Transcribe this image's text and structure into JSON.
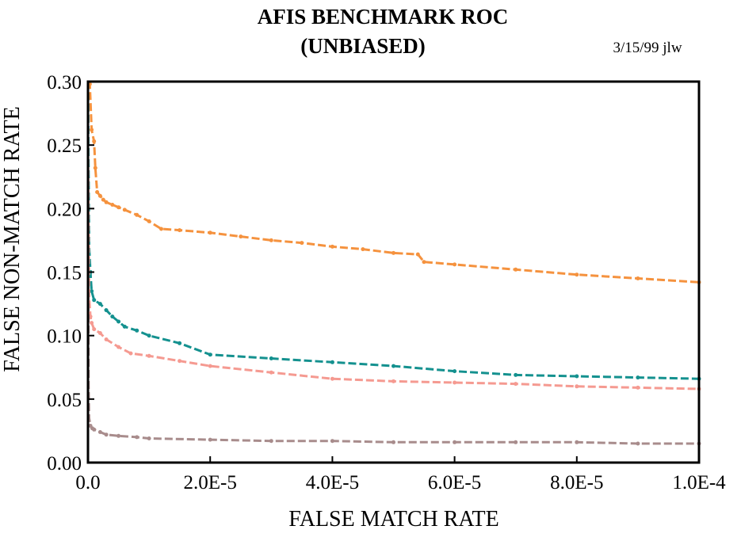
{
  "chart_data": {
    "type": "line",
    "title": "AFIS BENCHMARK ROC",
    "subtitle": "(UNBIASED)",
    "annotation": "3/15/99 jlw",
    "xlabel": "FALSE MATCH RATE",
    "ylabel": "FALSE NON-MATCH RATE",
    "xlim": [
      0,
      0.0001
    ],
    "ylim": [
      0,
      0.3
    ],
    "x_ticks": [
      0,
      2e-05,
      4e-05,
      6e-05,
      8e-05,
      0.0001
    ],
    "x_tick_labels": [
      "0.0",
      "2.0E-5",
      "4.0E-5",
      "6.0E-5",
      "8.0E-5",
      "1.0E-4"
    ],
    "y_ticks": [
      0,
      0.05,
      0.1,
      0.15,
      0.2,
      0.25,
      0.3
    ],
    "y_tick_labels": [
      "0.00",
      "0.05",
      "0.10",
      "0.15",
      "0.20",
      "0.25",
      "0.30"
    ],
    "grid": false,
    "legend": "none",
    "series": [
      {
        "color": "#f5923e",
        "x": [
          0,
          3e-07,
          6e-07,
          1e-06,
          1.2e-06,
          1.5e-06,
          2e-06,
          2.5e-06,
          3e-06,
          4e-06,
          5e-06,
          6e-06,
          8e-06,
          1e-05,
          1.2e-05,
          1.5e-05,
          2e-05,
          2.5e-05,
          3e-05,
          3.5e-05,
          4e-05,
          4.5e-05,
          5e-05,
          5.4e-05,
          5.5e-05,
          6e-05,
          7e-05,
          8e-05,
          9e-05,
          0.0001
        ],
        "y": [
          0.3,
          0.298,
          0.262,
          0.253,
          0.232,
          0.213,
          0.21,
          0.207,
          0.205,
          0.203,
          0.201,
          0.199,
          0.195,
          0.19,
          0.184,
          0.183,
          0.181,
          0.178,
          0.175,
          0.173,
          0.17,
          0.168,
          0.165,
          0.164,
          0.158,
          0.156,
          0.152,
          0.148,
          0.145,
          0.142
        ]
      },
      {
        "color": "#14918f",
        "x": [
          0,
          2e-07,
          4e-07,
          6e-07,
          1e-06,
          2e-06,
          3e-06,
          4e-06,
          5e-06,
          6e-06,
          8e-06,
          1e-05,
          1.5e-05,
          2e-05,
          3e-05,
          4e-05,
          5e-05,
          6e-05,
          7e-05,
          8e-05,
          9e-05,
          0.0001
        ],
        "y": [
          0.3,
          0.17,
          0.15,
          0.135,
          0.128,
          0.125,
          0.12,
          0.115,
          0.111,
          0.107,
          0.104,
          0.1,
          0.094,
          0.085,
          0.082,
          0.079,
          0.076,
          0.072,
          0.069,
          0.068,
          0.067,
          0.066
        ]
      },
      {
        "color": "#f59a91",
        "x": [
          0,
          2e-07,
          4e-07,
          6e-07,
          1e-06,
          2e-06,
          3e-06,
          5e-06,
          7e-06,
          1e-05,
          1.5e-05,
          2e-05,
          3e-05,
          4e-05,
          5e-05,
          6e-05,
          7e-05,
          8e-05,
          9e-05,
          0.0001
        ],
        "y": [
          0.25,
          0.13,
          0.115,
          0.11,
          0.105,
          0.102,
          0.097,
          0.091,
          0.086,
          0.084,
          0.08,
          0.076,
          0.071,
          0.066,
          0.064,
          0.063,
          0.062,
          0.06,
          0.059,
          0.058
        ]
      },
      {
        "color": "#a88c8c",
        "x": [
          0,
          1e-07,
          2e-07,
          4e-07,
          7e-07,
          1e-06,
          2e-06,
          3e-06,
          5e-06,
          8e-06,
          1e-05,
          2e-05,
          3e-05,
          4e-05,
          5e-05,
          6e-05,
          7e-05,
          8e-05,
          9e-05,
          0.0001
        ],
        "y": [
          0.3,
          0.06,
          0.035,
          0.029,
          0.027,
          0.026,
          0.024,
          0.022,
          0.021,
          0.02,
          0.019,
          0.018,
          0.017,
          0.017,
          0.016,
          0.016,
          0.016,
          0.016,
          0.015,
          0.015
        ]
      }
    ]
  }
}
